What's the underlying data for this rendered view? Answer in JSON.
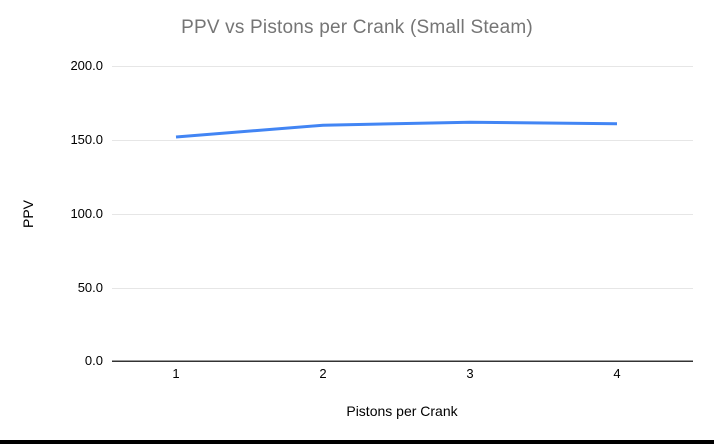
{
  "title": "PPV vs Pistons per Crank (Small Steam)",
  "chart_data": {
    "type": "line",
    "title": "PPV vs Pistons per Crank (Small Steam)",
    "x": [
      1,
      2,
      3,
      4
    ],
    "xtick_labels": [
      "1",
      "2",
      "3",
      "4"
    ],
    "series": [
      {
        "name": "PPV",
        "values": [
          152,
          160,
          162,
          161
        ]
      }
    ],
    "xlabel": "Pistons per Crank",
    "ylabel": "PPV",
    "ylim": [
      0,
      200
    ],
    "yticks": [
      0,
      50,
      100,
      150,
      200
    ],
    "ytick_labels": [
      "0.0",
      "50.0",
      "100.0",
      "150.0",
      "200.0"
    ],
    "grid": "horizontal",
    "legend": "none"
  },
  "colors": {
    "line": "#4285f4",
    "gridline": "#e6e6e6",
    "baseline": "#333333",
    "title_text": "#757575",
    "axis_text": "#000000"
  }
}
